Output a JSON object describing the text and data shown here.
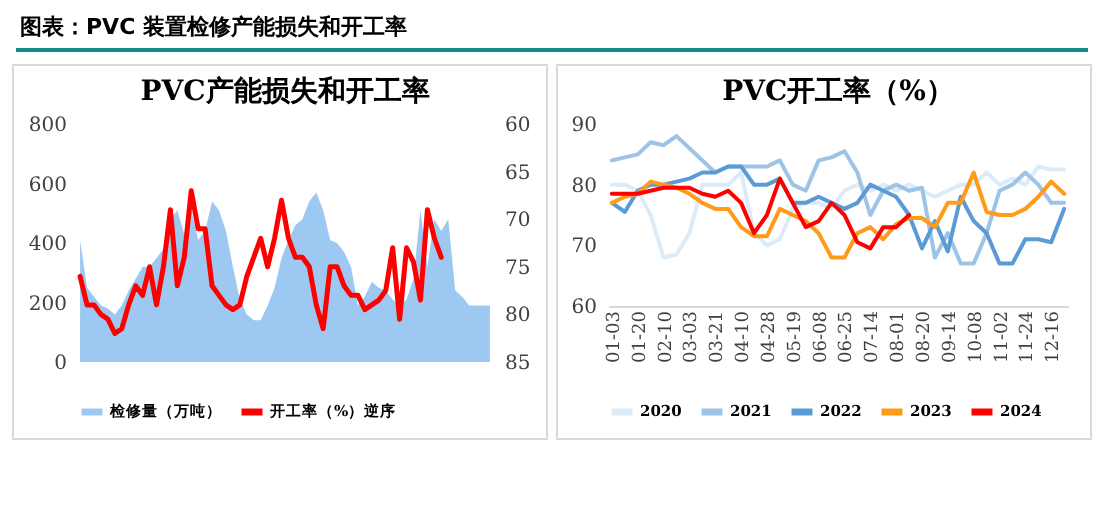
{
  "chart_data": [
    {
      "type": "area",
      "title": "PVC产能损失和开工率",
      "annotations": [
        "图表：PVC 装置检修产能损失和开工率"
      ],
      "categories": [
        null,
        null,
        null,
        null,
        null,
        null,
        null,
        null,
        null,
        null,
        null,
        null,
        null,
        null,
        null,
        null,
        null,
        null,
        null,
        null,
        null,
        null,
        null,
        null,
        null,
        null,
        null,
        null,
        null,
        null,
        null,
        null,
        null,
        null,
        null,
        null,
        null,
        null,
        null,
        null,
        null,
        null,
        null,
        null,
        null,
        null,
        null,
        null,
        null,
        null,
        null,
        null,
        null,
        null,
        null,
        null,
        null,
        null,
        null,
        null
      ],
      "series": [
        {
          "name": "检修量（万吨）",
          "type": "area",
          "color": "#9dc8f2",
          "values": [
            410,
            250,
            220,
            190,
            180,
            160,
            190,
            240,
            280,
            320,
            320,
            350,
            380,
            480,
            510,
            430,
            510,
            410,
            440,
            540,
            510,
            440,
            320,
            210,
            160,
            140,
            140,
            190,
            250,
            350,
            410,
            460,
            480,
            540,
            570,
            510,
            410,
            400,
            370,
            320,
            190,
            220,
            270,
            250,
            240,
            210,
            190,
            210,
            280,
            510,
            320,
            480,
            440,
            480,
            240,
            220,
            190,
            190,
            190,
            190
          ]
        },
        {
          "name": "开工率（%）逆序",
          "type": "line",
          "axis": "y2",
          "color": "#ff0000",
          "values": [
            76,
            79,
            79,
            80,
            80.5,
            82,
            81.5,
            79,
            77,
            78,
            75,
            79,
            75,
            69,
            77,
            74,
            67,
            71,
            71,
            77,
            78,
            79,
            79.5,
            79,
            76,
            74,
            72,
            75,
            72,
            68,
            72,
            74,
            74,
            75,
            79,
            81.5,
            75,
            75,
            77,
            78,
            78,
            79.5,
            79,
            78.5,
            77.5,
            73,
            80.5,
            73,
            74.5,
            78.5,
            69,
            72,
            74,
            null,
            null,
            null,
            null,
            null,
            null,
            null
          ]
        }
      ],
      "ylim": [
        0,
        800
      ],
      "yticks": [
        0,
        200,
        400,
        600,
        800
      ],
      "y2lim": [
        85,
        60
      ],
      "y2ticks": [
        60,
        65,
        70,
        75,
        80,
        85
      ],
      "tick_labels": "y",
      "legend": "bottom"
    },
    {
      "type": "line",
      "title": "PVC开工率（%）",
      "categories": [
        "01-03",
        null,
        "01-20",
        null,
        "02-10",
        null,
        "03-03",
        null,
        "03-21",
        null,
        "04-10",
        null,
        "04-28",
        null,
        "05-19",
        null,
        "06-08",
        null,
        "06-25",
        null,
        "07-14",
        null,
        "08-01",
        null,
        "08-20",
        null,
        "09-14",
        null,
        "10-08",
        null,
        "11-02",
        null,
        "11-24",
        null,
        "12-16",
        null
      ],
      "series": [
        {
          "name": "2020",
          "color": "#dcebf8",
          "values": [
            80,
            80,
            79,
            75,
            68,
            68.5,
            72,
            80,
            80,
            80,
            82,
            72,
            70,
            71,
            76,
            77,
            77,
            76,
            79,
            80,
            79,
            80,
            79,
            80,
            79,
            78,
            79,
            80,
            80,
            82,
            80,
            81,
            80,
            83,
            82.5,
            82.5
          ]
        },
        {
          "name": "2021",
          "color": "#9dc3e6",
          "values": [
            84,
            84.5,
            85,
            87,
            86.5,
            88,
            86,
            84,
            82,
            83,
            83,
            83,
            83,
            84,
            80,
            79,
            84,
            84.5,
            85.5,
            82,
            75,
            79,
            80,
            79,
            79.5,
            68,
            72,
            67,
            67,
            72,
            79,
            80,
            82,
            80,
            77,
            77
          ]
        },
        {
          "name": "2022",
          "color": "#5b9bd5",
          "values": [
            77,
            75.5,
            79,
            80,
            80,
            80.5,
            81,
            82,
            82,
            83,
            83,
            80,
            80,
            81,
            77,
            77,
            78,
            77,
            76,
            77,
            80,
            79,
            78,
            75,
            69.5,
            74,
            69,
            78,
            74,
            72,
            67,
            67,
            71,
            71,
            70.5,
            76
          ]
        },
        {
          "name": "2023",
          "color": "#ff9a1a",
          "values": [
            77,
            78,
            78.5,
            80.5,
            80,
            79.5,
            78.5,
            77,
            76,
            76,
            73,
            71.5,
            71.5,
            76,
            75,
            74,
            72,
            68,
            68,
            72,
            73,
            71,
            73.5,
            74.5,
            74.5,
            73,
            77,
            77,
            82,
            75.5,
            75,
            75,
            76,
            78,
            80.5,
            78.5
          ]
        },
        {
          "name": "2024",
          "color": "#ff0000",
          "values": [
            78.5,
            78.5,
            78.5,
            79,
            79.5,
            79.5,
            79.5,
            78.5,
            78,
            79,
            77,
            72,
            75,
            81,
            77,
            73,
            74,
            77,
            75,
            70.5,
            69.5,
            73,
            73,
            75,
            null,
            null,
            null,
            null,
            null,
            null,
            null,
            null,
            null,
            null,
            null,
            null
          ]
        }
      ],
      "ylim": [
        60,
        90
      ],
      "yticks": [
        60,
        70,
        80,
        90
      ],
      "legend": "bottom"
    }
  ]
}
